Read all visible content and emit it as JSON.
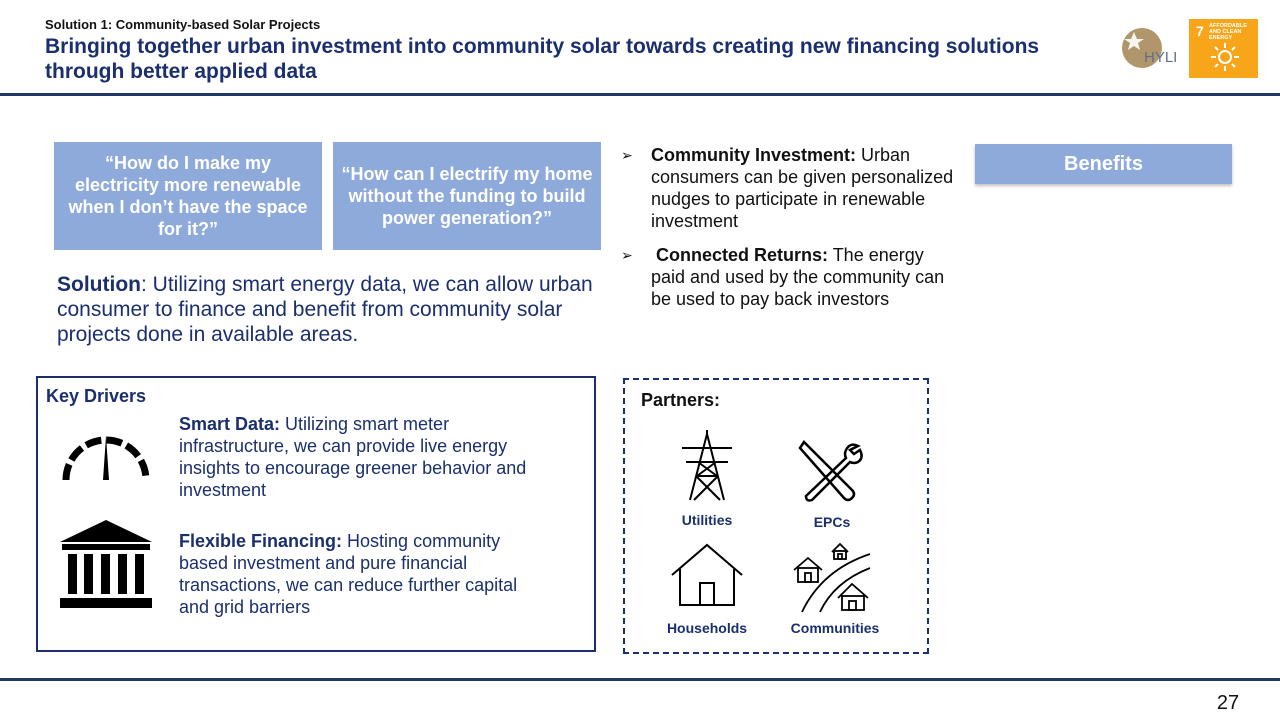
{
  "header": {
    "kicker": "Solution 1: Community-based Solar Projects",
    "title": "Bringing together urban investment into community solar towards creating new financing solutions through better applied data"
  },
  "logos": {
    "hyli_text": "HYLI",
    "sdg_number": "7",
    "sdg_label": "AFFORDABLE AND CLEAN ENERGY"
  },
  "quotes": [
    "“How do I make my electricity more renewable when I don’t have the space for it?”",
    "“How can I electrify my home without the funding to build power generation?”"
  ],
  "solution": {
    "label": "Solution",
    "text": ": Utilizing smart energy data, we can allow urban consumer to finance and benefit from community solar projects done in available areas."
  },
  "bullets": [
    {
      "title": "Community Investment:",
      "text": " Urban consumers can be given personalized nudges to participate in renewable investment"
    },
    {
      "title": "Connected Returns:",
      "text": " The energy paid and used by the community can be used to pay back investors"
    }
  ],
  "benefits_label": "Benefits",
  "key_drivers": {
    "title": "Key Drivers",
    "items": [
      {
        "title": "Smart Data:",
        "text": " Utilizing smart meter infrastructure, we can provide live energy insights to encourage greener behavior and investment",
        "icon": "gauge-icon"
      },
      {
        "title": "Flexible Financing:",
        "text": " Hosting community based investment and pure financial transactions, we can reduce further capital and grid barriers",
        "icon": "bank-icon"
      }
    ]
  },
  "partners": {
    "title": "Partners:",
    "items": [
      {
        "label": "Utilities",
        "icon": "power-tower-icon"
      },
      {
        "label": "EPCs",
        "icon": "tools-icon"
      },
      {
        "label": "Households",
        "icon": "house-icon"
      },
      {
        "label": "Communities",
        "icon": "community-icon"
      }
    ]
  },
  "page_number": "27",
  "colors": {
    "navy": "#1b2f6e",
    "quote_blue": "#8eaadb",
    "sdg_orange": "#f9a51a"
  }
}
